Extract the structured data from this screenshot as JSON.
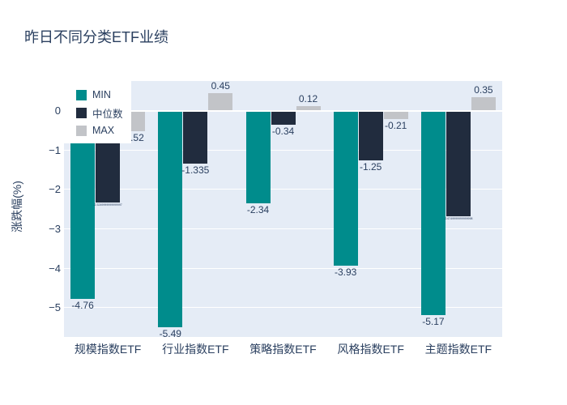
{
  "chart_data": {
    "type": "bar",
    "title": "昨日不同分类ETF业绩",
    "ylabel": "涨跌幅(%)",
    "xlabel": "",
    "categories": [
      "规模指数ETF",
      "行业指数ETF",
      "策略指数ETF",
      "风格指数ETF",
      "主题指数ETF"
    ],
    "series": [
      {
        "name": "MIN",
        "color": "#008c8c",
        "values": [
          -4.76,
          -5.49,
          -2.34,
          -3.93,
          -5.17
        ],
        "labels": [
          "-4.76",
          "-5.49",
          "-2.34",
          "-3.93",
          "-5.17"
        ]
      },
      {
        "name": "中位数",
        "color": "#212c3e",
        "values": [
          -2.325,
          -1.335,
          -0.34,
          -1.25,
          -2.675
        ],
        "labels": [
          "-2.3249999999999997",
          "-1.335",
          "-0.34",
          "-1.25",
          "-2.6749999999999998"
        ]
      },
      {
        "name": "MAX",
        "color": "#c2c4c8",
        "values": [
          -0.52,
          0.45,
          0.12,
          -0.21,
          0.35
        ],
        "labels": [
          "-0.52",
          "0.45",
          "0.12",
          "-0.21",
          "0.35"
        ]
      }
    ],
    "yticks": {
      "values": [
        0,
        -1,
        -2,
        -3,
        -4,
        -5
      ],
      "labels": [
        "0",
        "−1",
        "−2",
        "−3",
        "−4",
        "−5"
      ]
    },
    "ylim": [
      -5.73,
      0.76
    ],
    "grid": true,
    "legend_position": "top-left-inside",
    "colors": {
      "plot_bg": "#e5ecf6",
      "paper_bg": "#ffffff",
      "grid": "#ffffff",
      "text": "#2a3f5f",
      "legend_bg": "#ffffff"
    }
  }
}
